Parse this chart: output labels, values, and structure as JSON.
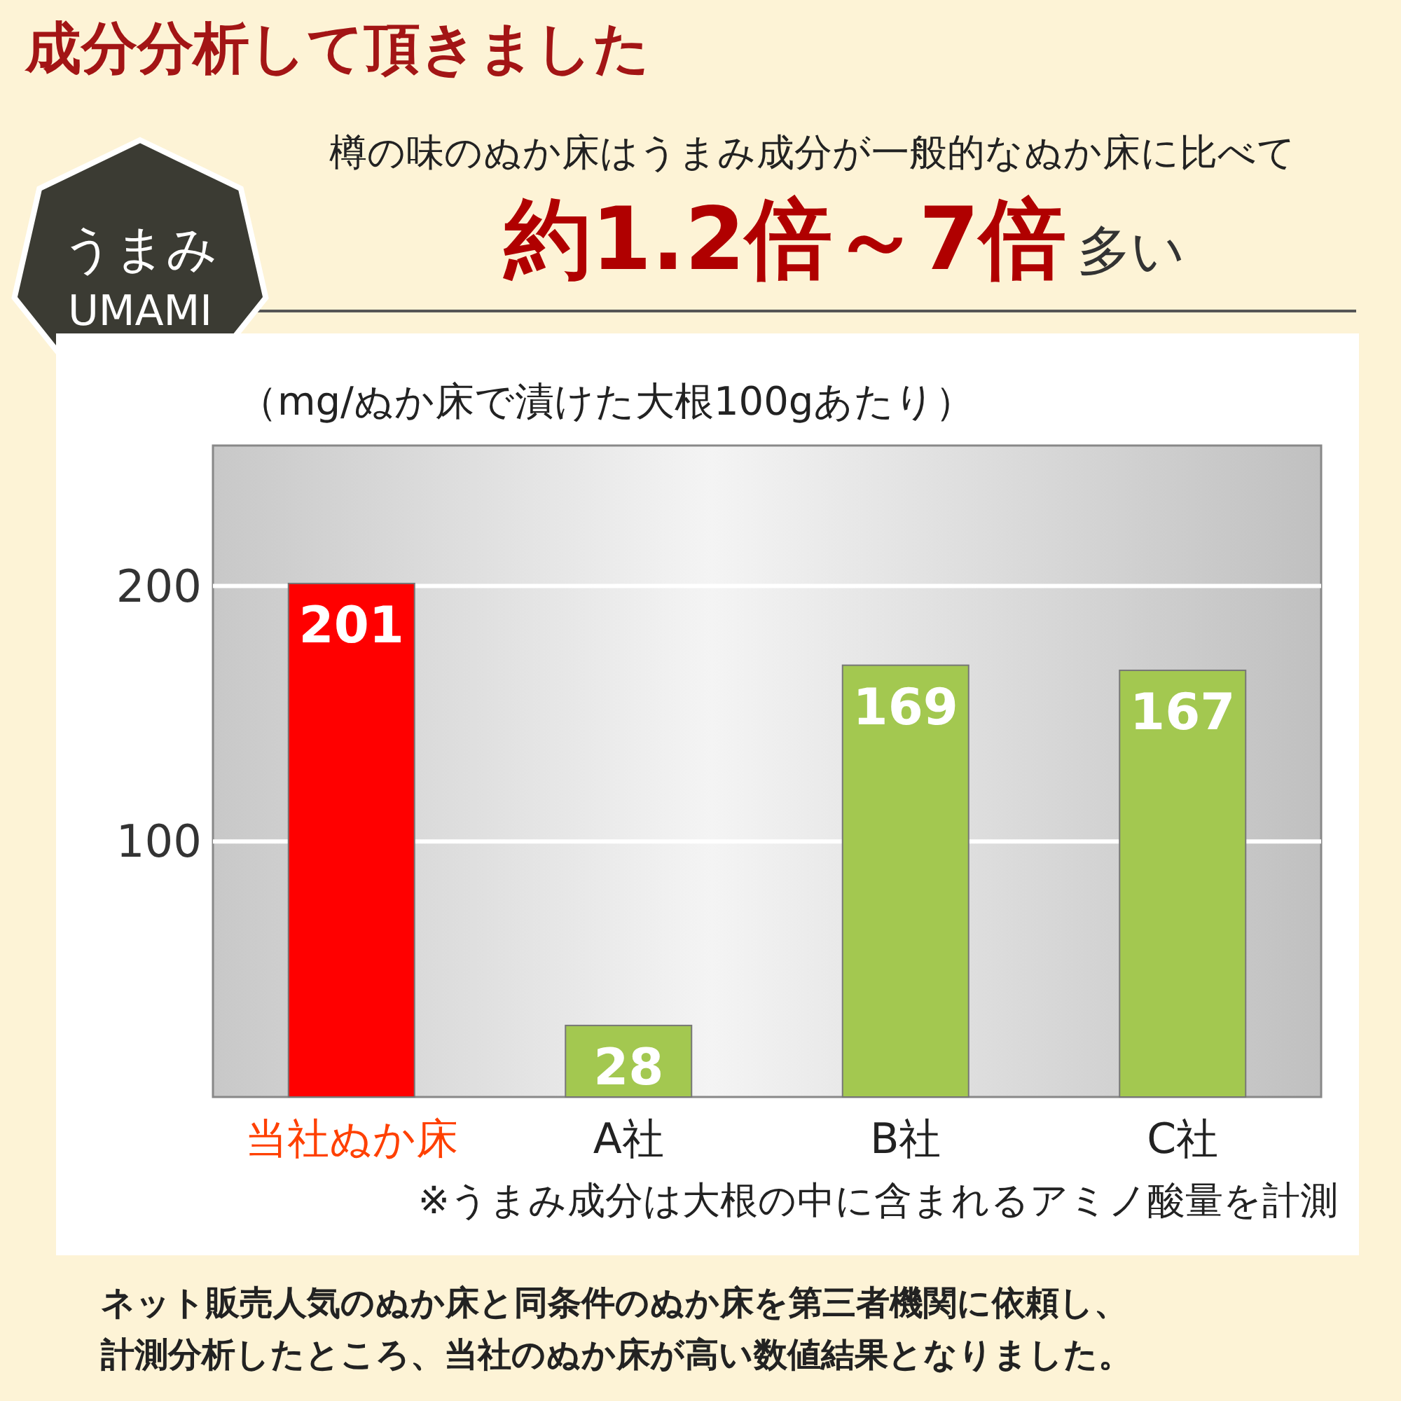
{
  "chart_data": {
    "type": "bar",
    "title": "成分分析して頂きました",
    "subtitle": "樽の味のぬか床はうまみ成分が一般的なぬか床に比べて",
    "ylabel": "（mg/ぬか床で漬けた大根100gあたり）",
    "annotations": [
      "約1.2倍～7倍",
      "多い",
      "うまみ",
      "UMAMI",
      "※うまみ成分は大根の中に含まれるアミノ酸量を計測",
      "ネット販売人気のぬか床と同条件のぬか床を第三者機関に依頼し、",
      "計測分析したところ、当社のぬか床が高い数値結果となりました。"
    ],
    "categories": [
      "当社ぬか床",
      "A社",
      "B社",
      "C社"
    ],
    "values": [
      201,
      28,
      169,
      167
    ],
    "colors": [
      "#ff0000",
      "#a3c850",
      "#a3c850",
      "#a3c850"
    ],
    "ylim": [
      0,
      255
    ],
    "yticks": [
      100,
      200
    ],
    "grid": "y",
    "data_labels": true
  }
}
